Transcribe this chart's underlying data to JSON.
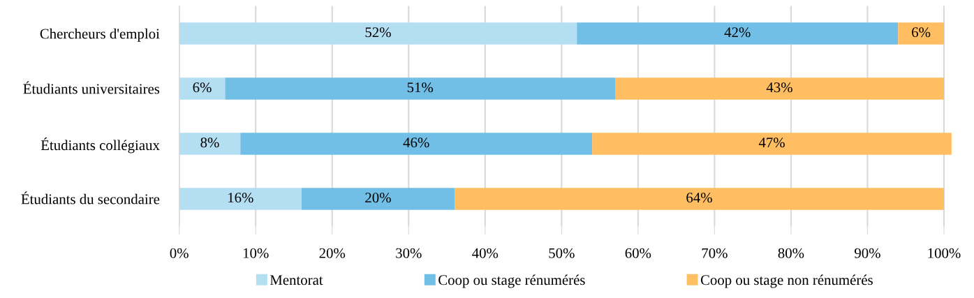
{
  "chart_data": {
    "type": "bar",
    "orientation": "horizontal",
    "stacked": true,
    "categories": [
      "Chercheurs d'emploi",
      "Étudiants universitaires",
      "Étudiants collégiaux",
      "Étudiants du secondaire"
    ],
    "series": [
      {
        "name": "Mentorat",
        "color": "#b4dff3",
        "values": [
          52,
          6,
          8,
          16
        ],
        "value_labels": [
          "52%",
          "6%",
          "8%",
          "16%"
        ]
      },
      {
        "name": "Coop ou stage rénumérés",
        "color": "#71bfe6",
        "values": [
          42,
          51,
          46,
          20
        ],
        "value_labels": [
          "42%",
          "51%",
          "46%",
          "20%"
        ]
      },
      {
        "name": "Coop ou stage non rénumérés",
        "color": "#ffbe62",
        "values": [
          6,
          43,
          47,
          64
        ],
        "value_labels": [
          "6%",
          "43%",
          "47%",
          "64%"
        ]
      }
    ],
    "xlim": [
      0,
      101
    ],
    "xticks": [
      {
        "value": 0,
        "label": "0%"
      },
      {
        "value": 10,
        "label": "10%"
      },
      {
        "value": 20,
        "label": "20%"
      },
      {
        "value": 30,
        "label": "30%"
      },
      {
        "value": 40,
        "label": "40%"
      },
      {
        "value": 50,
        "label": "50%"
      },
      {
        "value": 60,
        "label": "60%"
      },
      {
        "value": 70,
        "label": "70%"
      },
      {
        "value": 80,
        "label": "80%"
      },
      {
        "value": 90,
        "label": "90%"
      },
      {
        "value": 100,
        "label": "100%"
      }
    ],
    "grid": "x",
    "legend": "bottom"
  }
}
